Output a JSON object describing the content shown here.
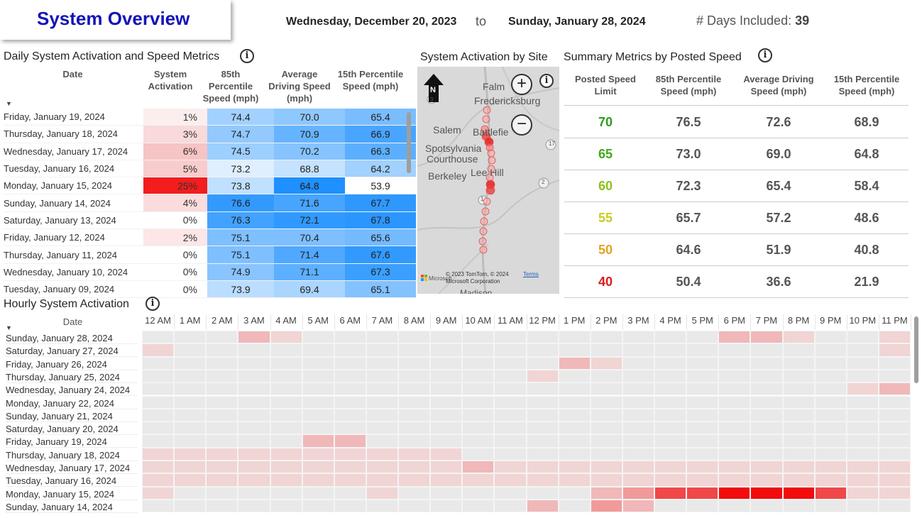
{
  "header": {
    "title": "System Overview",
    "start_date": "Wednesday, December 20, 2023",
    "to_label": "to",
    "end_date": "Sunday, January 28, 2024",
    "days_label": "# Days Included:",
    "days_value": "39"
  },
  "colors": {
    "title": "#1414b8",
    "activation_high": "#f21d1d",
    "blue_dark": "#1e90ff",
    "blue_light": "#dbeeff"
  },
  "daily": {
    "title": "Daily System Activation and Speed Metrics",
    "info_icon": "info-icon",
    "columns": [
      "Date",
      "System Activation",
      "85th Percentile Speed (mph)",
      "Average Driving Speed (mph)",
      "15th Percentile Speed (mph)"
    ],
    "rows": [
      {
        "date": "Friday, January 19, 2024",
        "act": "1%",
        "p85": "74.4",
        "avg": "70.0",
        "p15": "65.4"
      },
      {
        "date": "Thursday, January 18, 2024",
        "act": "3%",
        "p85": "74.7",
        "avg": "70.9",
        "p15": "66.9"
      },
      {
        "date": "Wednesday, January 17, 2024",
        "act": "6%",
        "p85": "74.5",
        "avg": "70.2",
        "p15": "66.3"
      },
      {
        "date": "Tuesday, January 16, 2024",
        "act": "5%",
        "p85": "73.2",
        "avg": "68.8",
        "p15": "64.2"
      },
      {
        "date": "Monday, January 15, 2024",
        "act": "25%",
        "p85": "73.8",
        "avg": "64.8",
        "p15": "53.9"
      },
      {
        "date": "Sunday, January 14, 2024",
        "act": "4%",
        "p85": "76.6",
        "avg": "71.6",
        "p15": "67.7"
      },
      {
        "date": "Saturday, January 13, 2024",
        "act": "0%",
        "p85": "76.3",
        "avg": "72.1",
        "p15": "67.8"
      },
      {
        "date": "Friday, January 12, 2024",
        "act": "2%",
        "p85": "75.1",
        "avg": "70.4",
        "p15": "65.6"
      },
      {
        "date": "Thursday, January 11, 2024",
        "act": "0%",
        "p85": "75.1",
        "avg": "71.4",
        "p15": "67.6"
      },
      {
        "date": "Wednesday, January 10, 2024",
        "act": "0%",
        "p85": "74.9",
        "avg": "71.1",
        "p15": "67.3"
      },
      {
        "date": "Tuesday, January 09, 2024",
        "act": "0%",
        "p85": "73.9",
        "avg": "69.4",
        "p15": "65.1"
      }
    ]
  },
  "map": {
    "title": "System Activation by Site",
    "north_label": "N",
    "places": [
      "Falm",
      "Fredericksburg",
      "Salem",
      "Battlefie",
      "Spotsylvania",
      "Courthouse",
      "Lee Hill",
      "Berkeley",
      "Madison"
    ],
    "route_labels": [
      "3",
      "17",
      "2",
      "1"
    ],
    "copyright": "© 2023 TomTom, © 2024 Microsoft Corporation",
    "terms": "Terms",
    "ms_label": "Microsoft"
  },
  "summary": {
    "title": "Summary Metrics by Posted Speed",
    "columns": [
      "Posted Speed Limit",
      "85th Percentile Speed (mph)",
      "Average Driving Speed (mph)",
      "15th Percentile Speed (mph)"
    ],
    "rows": [
      {
        "limit": "70",
        "color": "#2e9b1c",
        "p85": "76.5",
        "avg": "72.6",
        "p15": "68.9"
      },
      {
        "limit": "65",
        "color": "#3aab1a",
        "p85": "73.0",
        "avg": "69.0",
        "p15": "64.8"
      },
      {
        "limit": "60",
        "color": "#8cc21a",
        "p85": "72.3",
        "avg": "65.4",
        "p15": "58.4"
      },
      {
        "limit": "55",
        "color": "#c8cc22",
        "p85": "65.7",
        "avg": "57.2",
        "p15": "48.6"
      },
      {
        "limit": "50",
        "color": "#e8a020",
        "p85": "64.6",
        "avg": "51.9",
        "p15": "40.8"
      },
      {
        "limit": "40",
        "color": "#e01818",
        "p85": "50.4",
        "avg": "36.6",
        "p15": "21.9"
      }
    ]
  },
  "hourly": {
    "title": "Hourly System Activation",
    "date_header": "Date",
    "hours": [
      "12 AM",
      "1 AM",
      "2 AM",
      "3 AM",
      "4 AM",
      "5 AM",
      "6 AM",
      "7 AM",
      "8 AM",
      "9 AM",
      "10 AM",
      "11 AM",
      "12 PM",
      "1 PM",
      "2 PM",
      "3 PM",
      "4 PM",
      "5 PM",
      "6 PM",
      "7 PM",
      "8 PM",
      "9 PM",
      "10 PM",
      "11 PM"
    ],
    "dates": [
      "Sunday, January 28, 2024",
      "Saturday, January 27, 2024",
      "Friday, January 26, 2024",
      "Thursday, January 25, 2024",
      "Wednesday, January 24, 2024",
      "Monday, January 22, 2024",
      "Sunday, January 21, 2024",
      "Saturday, January 20, 2024",
      "Friday, January 19, 2024",
      "Thursday, January 18, 2024",
      "Wednesday, January 17, 2024",
      "Tuesday, January 16, 2024",
      "Monday, January 15, 2024",
      "Sunday, January 14, 2024"
    ]
  }
}
